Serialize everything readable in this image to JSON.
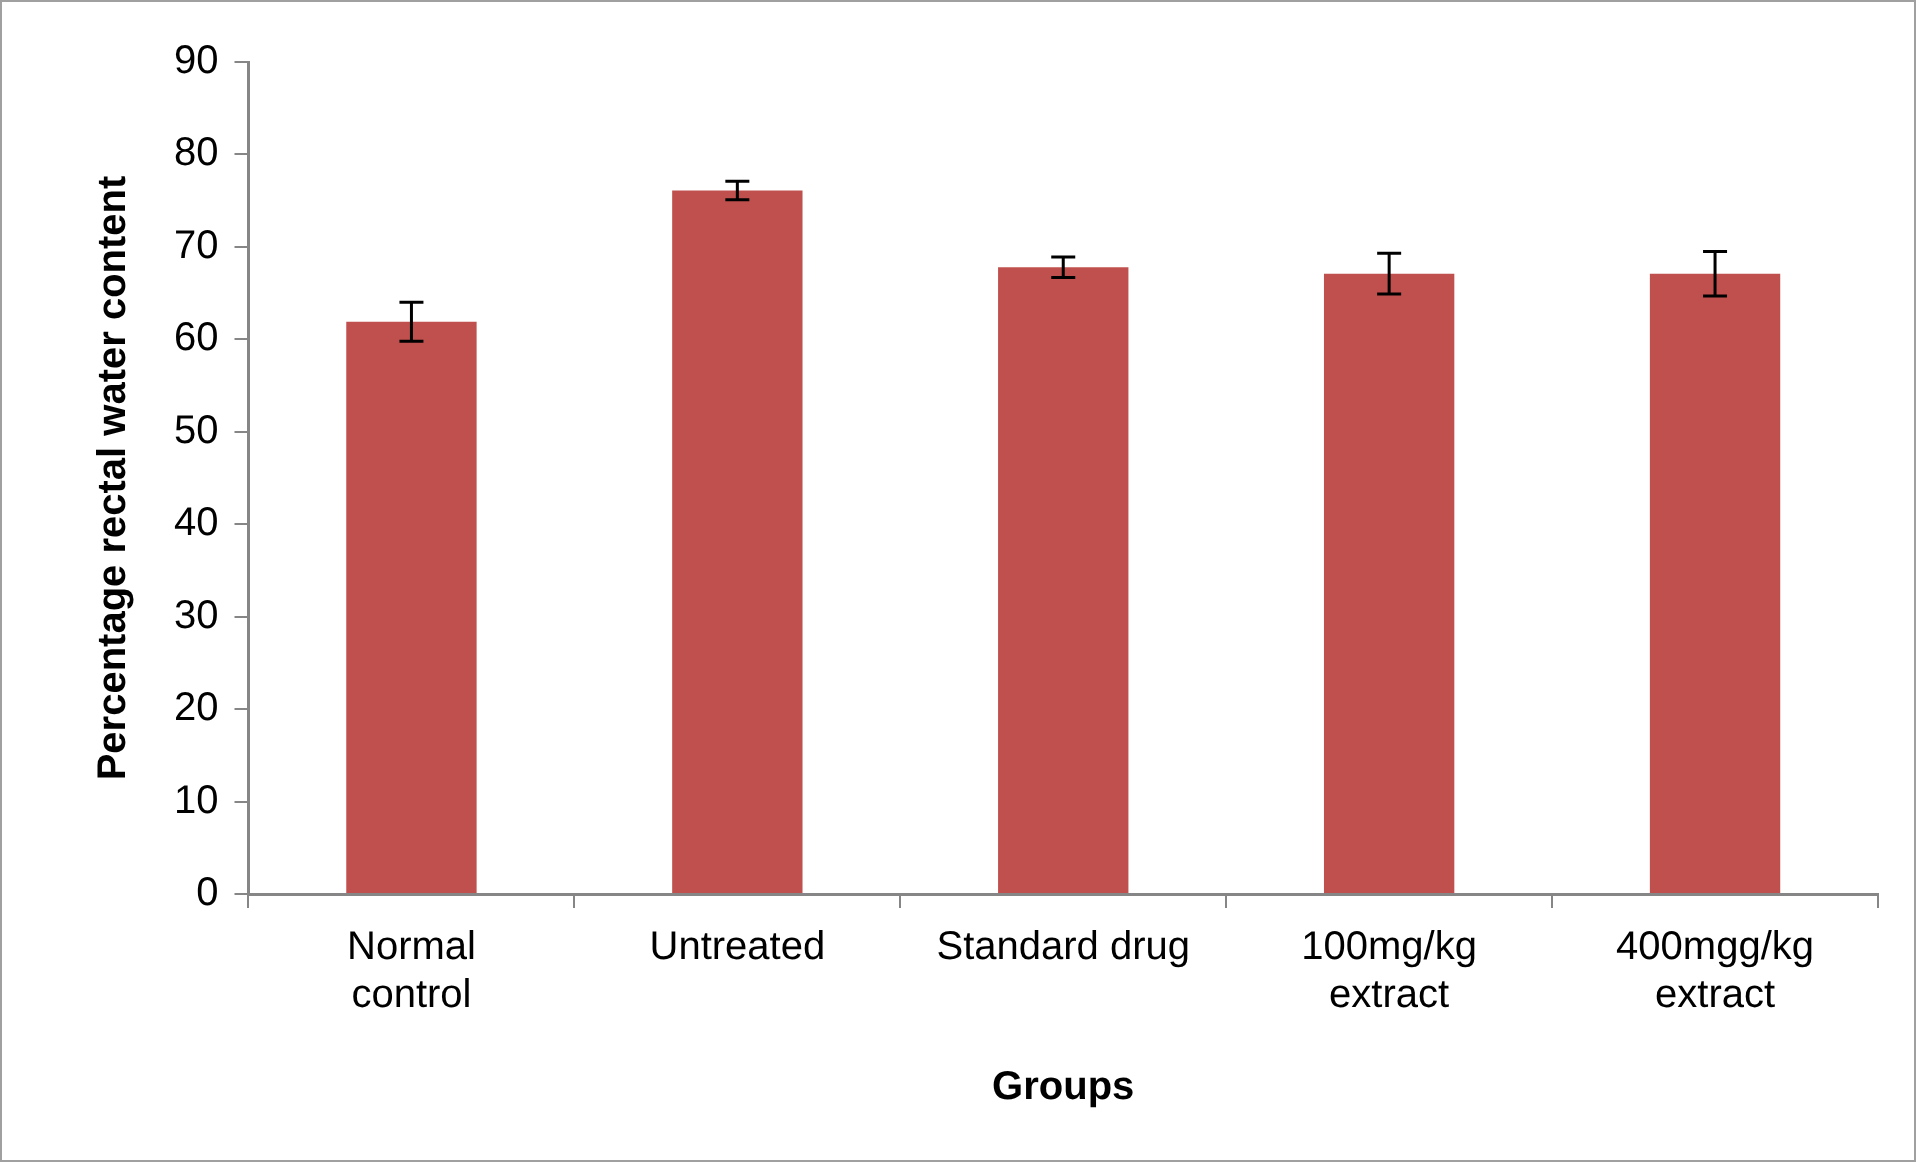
{
  "chart_data": {
    "type": "bar",
    "xlabel": "Groups",
    "ylabel": "Percentage rectal water content",
    "categories": [
      "Normal control",
      "Untreated",
      "Standard drug",
      "100mg/kg extract",
      "400mgg/kg extract"
    ],
    "values": [
      61.9,
      76.1,
      67.8,
      67.1,
      67.1
    ],
    "errors": [
      2.1,
      1,
      1.1,
      2.2,
      2.4
    ],
    "color": "#c0504d",
    "ylim": [
      0,
      90
    ],
    "yticks": [
      0,
      10,
      20,
      30,
      40,
      50,
      60,
      70,
      80,
      90
    ],
    "grid": false,
    "legend": false
  }
}
